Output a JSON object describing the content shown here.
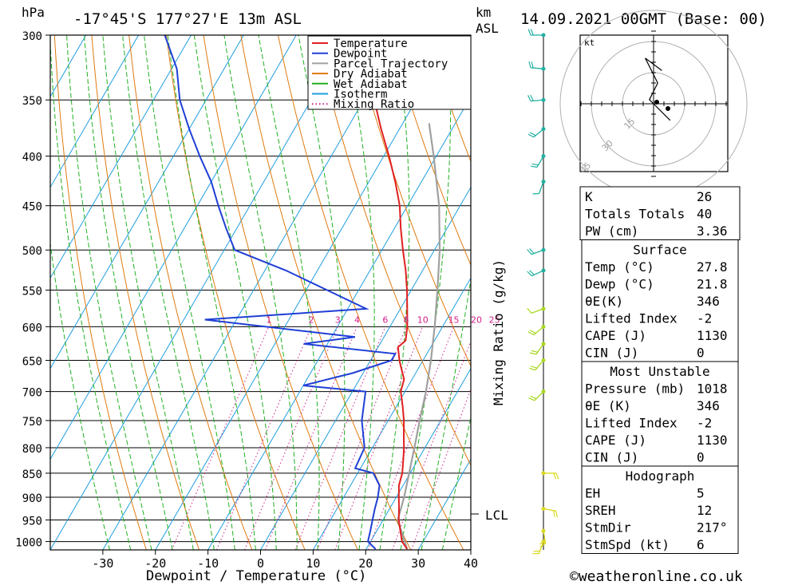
{
  "header": {
    "pressure_unit": "hPa",
    "location": "-17°45'S  177°27'E  13m  ASL",
    "km_label": "km",
    "asl_label": "ASL",
    "datetime": "14.09.2021  00GMT  (Base: 00)"
  },
  "legend": [
    {
      "label": "Temperature",
      "color": "#e02020",
      "style": "solid"
    },
    {
      "label": "Dewpoint",
      "color": "#1f3fd6",
      "style": "solid"
    },
    {
      "label": "Parcel Trajectory",
      "color": "#a0a0a0",
      "style": "solid"
    },
    {
      "label": "Dry Adiabat",
      "color": "#e07a10",
      "style": "solid"
    },
    {
      "label": "Wet Adiabat",
      "color": "#20b020",
      "style": "solid"
    },
    {
      "label": "Isotherm",
      "color": "#1e9ee0",
      "style": "solid"
    },
    {
      "label": "Mixing Ratio",
      "color": "#d0208a",
      "style": "dotted"
    }
  ],
  "axes": {
    "xlabel": "Dewpoint / Temperature (°C)",
    "mixing_label": "Mixing Ratio (g/kg)",
    "mixing_ratio_values": [
      "1",
      "2",
      "3",
      "4",
      "6",
      "8",
      "10",
      "15",
      "20",
      "25"
    ],
    "lcl_label": "LCL",
    "hodo_unit": "kt",
    "hodo_rings": [
      "15",
      "30",
      "45"
    ]
  },
  "chart_data": {
    "type": "skew-t",
    "pressure_levels": [
      300,
      350,
      400,
      450,
      500,
      550,
      600,
      650,
      700,
      750,
      800,
      850,
      900,
      950,
      1000
    ],
    "temperature_ticks": [
      -30,
      -20,
      -10,
      0,
      10,
      20,
      30,
      40
    ],
    "xlim": [
      -40,
      40
    ],
    "ylim_hpa": [
      1020,
      300
    ],
    "lcl_hpa": 940,
    "temperature": [
      [
        1018,
        27.8
      ],
      [
        1000,
        26
      ],
      [
        975,
        24.5
      ],
      [
        950,
        23
      ],
      [
        925,
        21.8
      ],
      [
        900,
        20.5
      ],
      [
        875,
        19.2
      ],
      [
        850,
        18.5
      ],
      [
        825,
        17.3
      ],
      [
        800,
        16
      ],
      [
        775,
        14.5
      ],
      [
        750,
        13
      ],
      [
        725,
        11.2
      ],
      [
        700,
        9.2
      ],
      [
        680,
        8.5
      ],
      [
        660,
        6.5
      ],
      [
        650,
        5.5
      ],
      [
        630,
        3.8
      ],
      [
        620,
        4.5
      ],
      [
        600,
        3.3
      ],
      [
        575,
        1.3
      ],
      [
        550,
        -0.8
      ],
      [
        525,
        -3.2
      ],
      [
        500,
        -6
      ],
      [
        475,
        -8.8
      ],
      [
        450,
        -11.5
      ],
      [
        425,
        -15
      ],
      [
        400,
        -19
      ],
      [
        375,
        -23.5
      ],
      [
        350,
        -28
      ],
      [
        325,
        -33
      ],
      [
        300,
        -37.5
      ]
    ],
    "dewpoint": [
      [
        1018,
        21.8
      ],
      [
        1000,
        19.5
      ],
      [
        975,
        18.8
      ],
      [
        950,
        18
      ],
      [
        925,
        17.2
      ],
      [
        900,
        16.5
      ],
      [
        875,
        15.5
      ],
      [
        850,
        13
      ],
      [
        840,
        9
      ],
      [
        800,
        8.5
      ],
      [
        750,
        5
      ],
      [
        700,
        2.5
      ],
      [
        690,
        -10
      ],
      [
        670,
        -2
      ],
      [
        650,
        4
      ],
      [
        640,
        4
      ],
      [
        625,
        -14.5
      ],
      [
        615,
        -5.5
      ],
      [
        590,
        -36
      ],
      [
        575,
        -6.5
      ],
      [
        550,
        -16
      ],
      [
        525,
        -26
      ],
      [
        500,
        -38
      ],
      [
        475,
        -42
      ],
      [
        450,
        -46
      ],
      [
        425,
        -50
      ],
      [
        400,
        -55
      ],
      [
        375,
        -60
      ],
      [
        350,
        -65
      ],
      [
        325,
        -69
      ],
      [
        300,
        -75
      ]
    ],
    "parcel": [
      [
        1018,
        27.8
      ],
      [
        950,
        22.8
      ],
      [
        900,
        21.5
      ],
      [
        850,
        19.8
      ],
      [
        800,
        18
      ],
      [
        750,
        16
      ],
      [
        700,
        14
      ],
      [
        650,
        11.5
      ],
      [
        600,
        8.5
      ],
      [
        550,
        5
      ],
      [
        500,
        1
      ],
      [
        450,
        -4
      ],
      [
        400,
        -10.5
      ],
      [
        370,
        -15
      ]
    ],
    "indices": [
      {
        "label": "K",
        "value": "26"
      },
      {
        "label": "Totals Totals",
        "value": "40"
      },
      {
        "label": "PW (cm)",
        "value": "3.36"
      }
    ],
    "surface": {
      "title": "Surface",
      "rows": [
        {
          "label": "Temp (°C)",
          "value": "27.8"
        },
        {
          "label": "Dewp (°C)",
          "value": "21.8"
        },
        {
          "label": "θE(K)",
          "value": "346"
        },
        {
          "label": "Lifted Index",
          "value": "-2"
        },
        {
          "label": "CAPE (J)",
          "value": "1130"
        },
        {
          "label": "CIN (J)",
          "value": "0"
        }
      ]
    },
    "most_unstable": {
      "title": "Most Unstable",
      "rows": [
        {
          "label": "Pressure (mb)",
          "value": "1018"
        },
        {
          "label": "θE (K)",
          "value": "346"
        },
        {
          "label": "Lifted Index",
          "value": "-2"
        },
        {
          "label": "CAPE (J)",
          "value": "1130"
        },
        {
          "label": "CIN (J)",
          "value": "0"
        }
      ]
    },
    "hodograph_stats": {
      "title": "Hodograph",
      "rows": [
        {
          "label": "EH",
          "value": "5"
        },
        {
          "label": "SREH",
          "value": "12"
        },
        {
          "label": "StmDir",
          "value": "217°"
        },
        {
          "label": "StmSpd (kt)",
          "value": "6"
        }
      ]
    },
    "wind_profile": [
      {
        "p": 300,
        "dir": 270,
        "spd": 15
      },
      {
        "p": 325,
        "dir": 275,
        "spd": 15
      },
      {
        "p": 350,
        "dir": 265,
        "spd": 20
      },
      {
        "p": 375,
        "dir": 230,
        "spd": 20
      },
      {
        "p": 400,
        "dir": 210,
        "spd": 15
      },
      {
        "p": 425,
        "dir": 200,
        "spd": 10
      },
      {
        "p": 500,
        "dir": 250,
        "spd": 20
      },
      {
        "p": 525,
        "dir": 245,
        "spd": 15
      },
      {
        "p": 575,
        "dir": 250,
        "spd": 10
      },
      {
        "p": 600,
        "dir": 230,
        "spd": 15
      },
      {
        "p": 625,
        "dir": 215,
        "spd": 20
      },
      {
        "p": 650,
        "dir": 220,
        "spd": 15
      },
      {
        "p": 700,
        "dir": 225,
        "spd": 20
      },
      {
        "p": 850,
        "dir": 90,
        "spd": 15
      },
      {
        "p": 925,
        "dir": 100,
        "spd": 15
      },
      {
        "p": 975,
        "dir": 170,
        "spd": 20
      },
      {
        "p": 1000,
        "dir": 200,
        "spd": 15
      }
    ],
    "hodograph": {
      "points_kt": [
        [
          8,
          -8
        ],
        [
          4,
          -4
        ],
        [
          0,
          0
        ],
        [
          -2,
          2
        ],
        [
          2,
          10
        ],
        [
          -4,
          22
        ],
        [
          4,
          16
        ]
      ]
    }
  },
  "footer": {
    "copyright": "©weatheronline.co.uk"
  }
}
